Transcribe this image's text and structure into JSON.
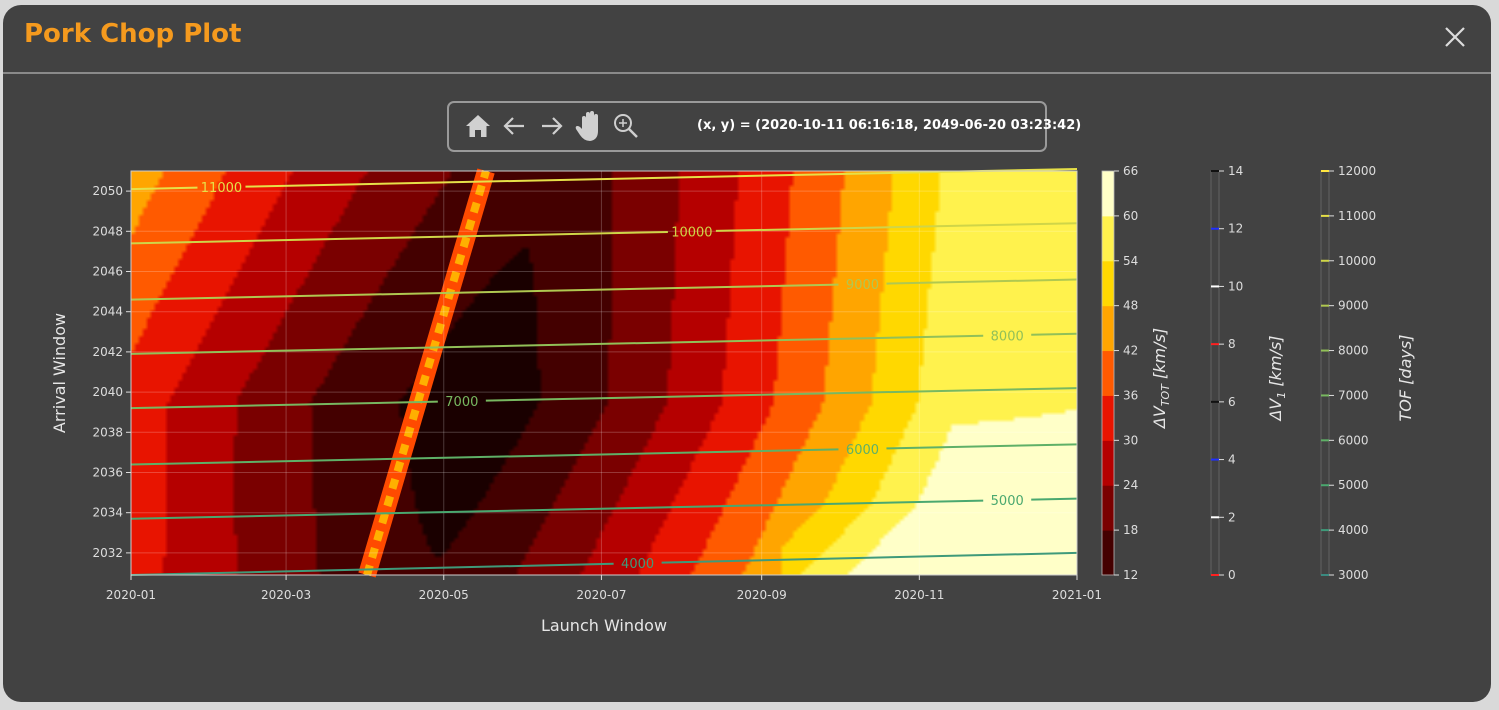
{
  "window": {
    "title": "Pork Chop Plot",
    "close_icon": "close-icon"
  },
  "toolbar": {
    "tools": [
      "home-icon",
      "back-arrow-icon",
      "forward-arrow-icon",
      "pan-hand-icon",
      "zoom-magnifier-icon"
    ],
    "coords": "(x, y) = (2020-10-11 06:16:18, 2049-06-20 03:23:42)"
  },
  "colors": {
    "accent": "#f59a1e",
    "panel": "#424242"
  },
  "chart_data": {
    "type": "contour",
    "xlabel": "Launch Window",
    "ylabel": "Arrival Window",
    "x_ticks": [
      "2020-01",
      "2020-03",
      "2020-05",
      "2020-07",
      "2020-09",
      "2020-11",
      "2021-01"
    ],
    "y_ticks": [
      "2032",
      "2034",
      "2036",
      "2038",
      "2040",
      "2042",
      "2044",
      "2046",
      "2048",
      "2050"
    ],
    "xlim": [
      "2020-01-01",
      "2021-01-01"
    ],
    "ylim": [
      2030.9,
      2051.0
    ],
    "grid": true,
    "dv_tot_levels": [
      12,
      18,
      24,
      30,
      36,
      42,
      48,
      54,
      60,
      66
    ],
    "dv_tot_colors": [
      "#1a0000",
      "#440000",
      "#7a0000",
      "#b50000",
      "#e81400",
      "#ff5a00",
      "#ffa500",
      "#ffd800",
      "#fff24d",
      "#ffffc8"
    ],
    "tof_contours": [
      {
        "label": "4000",
        "y_left": 2030.9,
        "y_right": 2032.0,
        "label_x": "2020-07-15"
      },
      {
        "label": "5000",
        "y_left": 2033.7,
        "y_right": 2034.7,
        "label_x": "2020-12-05"
      },
      {
        "label": "6000",
        "y_left": 2036.4,
        "y_right": 2037.4,
        "label_x": "2020-10-10"
      },
      {
        "label": "7000",
        "y_left": 2039.2,
        "y_right": 2040.2,
        "label_x": "2020-05-08"
      },
      {
        "label": "8000",
        "y_left": 2041.9,
        "y_right": 2042.9,
        "label_x": "2020-12-05"
      },
      {
        "label": "9000",
        "y_left": 2044.6,
        "y_right": 2045.6,
        "label_x": "2020-10-10"
      },
      {
        "label": "10000",
        "y_left": 2047.4,
        "y_right": 2048.4,
        "label_x": "2020-08-05"
      },
      {
        "label": "11000",
        "y_left": 2050.1,
        "y_right": 2051.1,
        "label_x": "2020-02-05"
      }
    ],
    "colorbars": [
      {
        "label": "ΔV",
        "sub": "TOT",
        "unit": " [km/s]",
        "ticks": [
          12,
          18,
          24,
          30,
          36,
          42,
          48,
          54,
          60,
          66
        ]
      },
      {
        "label": "ΔV",
        "sub": "1",
        "unit": " [km/s]",
        "ticks": [
          0,
          2,
          4,
          6,
          8,
          10,
          12,
          14
        ],
        "tick_colors": [
          "#ff2020",
          "#ffffff",
          "#2030ff",
          "#111111",
          "#ff2020",
          "#ffffff",
          "#2030ff",
          "#111111"
        ]
      },
      {
        "label": "TOF",
        "sub": "",
        "unit": " [days]",
        "ticks": [
          3000,
          4000,
          5000,
          6000,
          7000,
          8000,
          9000,
          10000,
          11000,
          12000
        ],
        "tick_colors": [
          "#3a8a80",
          "#3f9a7a",
          "#4aa86f",
          "#5fb067",
          "#78b860",
          "#92c058",
          "#b0c850",
          "#cfd548",
          "#e6e048",
          "#ffe640"
        ]
      }
    ]
  }
}
